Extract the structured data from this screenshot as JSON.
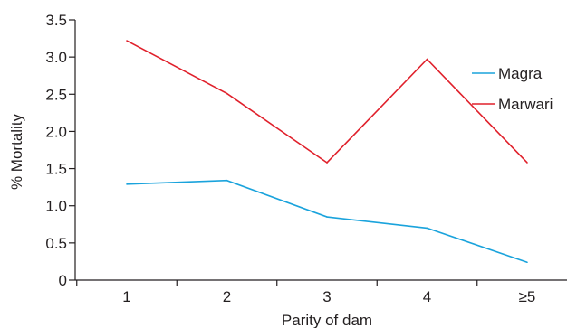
{
  "chart_data": {
    "type": "line",
    "categories": [
      "1",
      "2",
      "3",
      "4",
      "≥5"
    ],
    "series": [
      {
        "name": "Magra",
        "values": [
          1.29,
          1.34,
          0.85,
          0.7,
          0.24
        ],
        "color": "#1aa3dc"
      },
      {
        "name": "Marwari",
        "values": [
          3.22,
          2.51,
          1.58,
          2.97,
          1.58
        ],
        "color": "#e0202b"
      }
    ],
    "title": "",
    "xlabel": "Parity of dam",
    "ylabel": "% Mortality",
    "ylim": [
      0,
      3.5
    ],
    "yticks": [
      "0",
      "0.5",
      "1.0",
      "1.5",
      "2.0",
      "2.5",
      "3.0",
      "3.5"
    ],
    "grid": false,
    "legend_position": "right"
  }
}
